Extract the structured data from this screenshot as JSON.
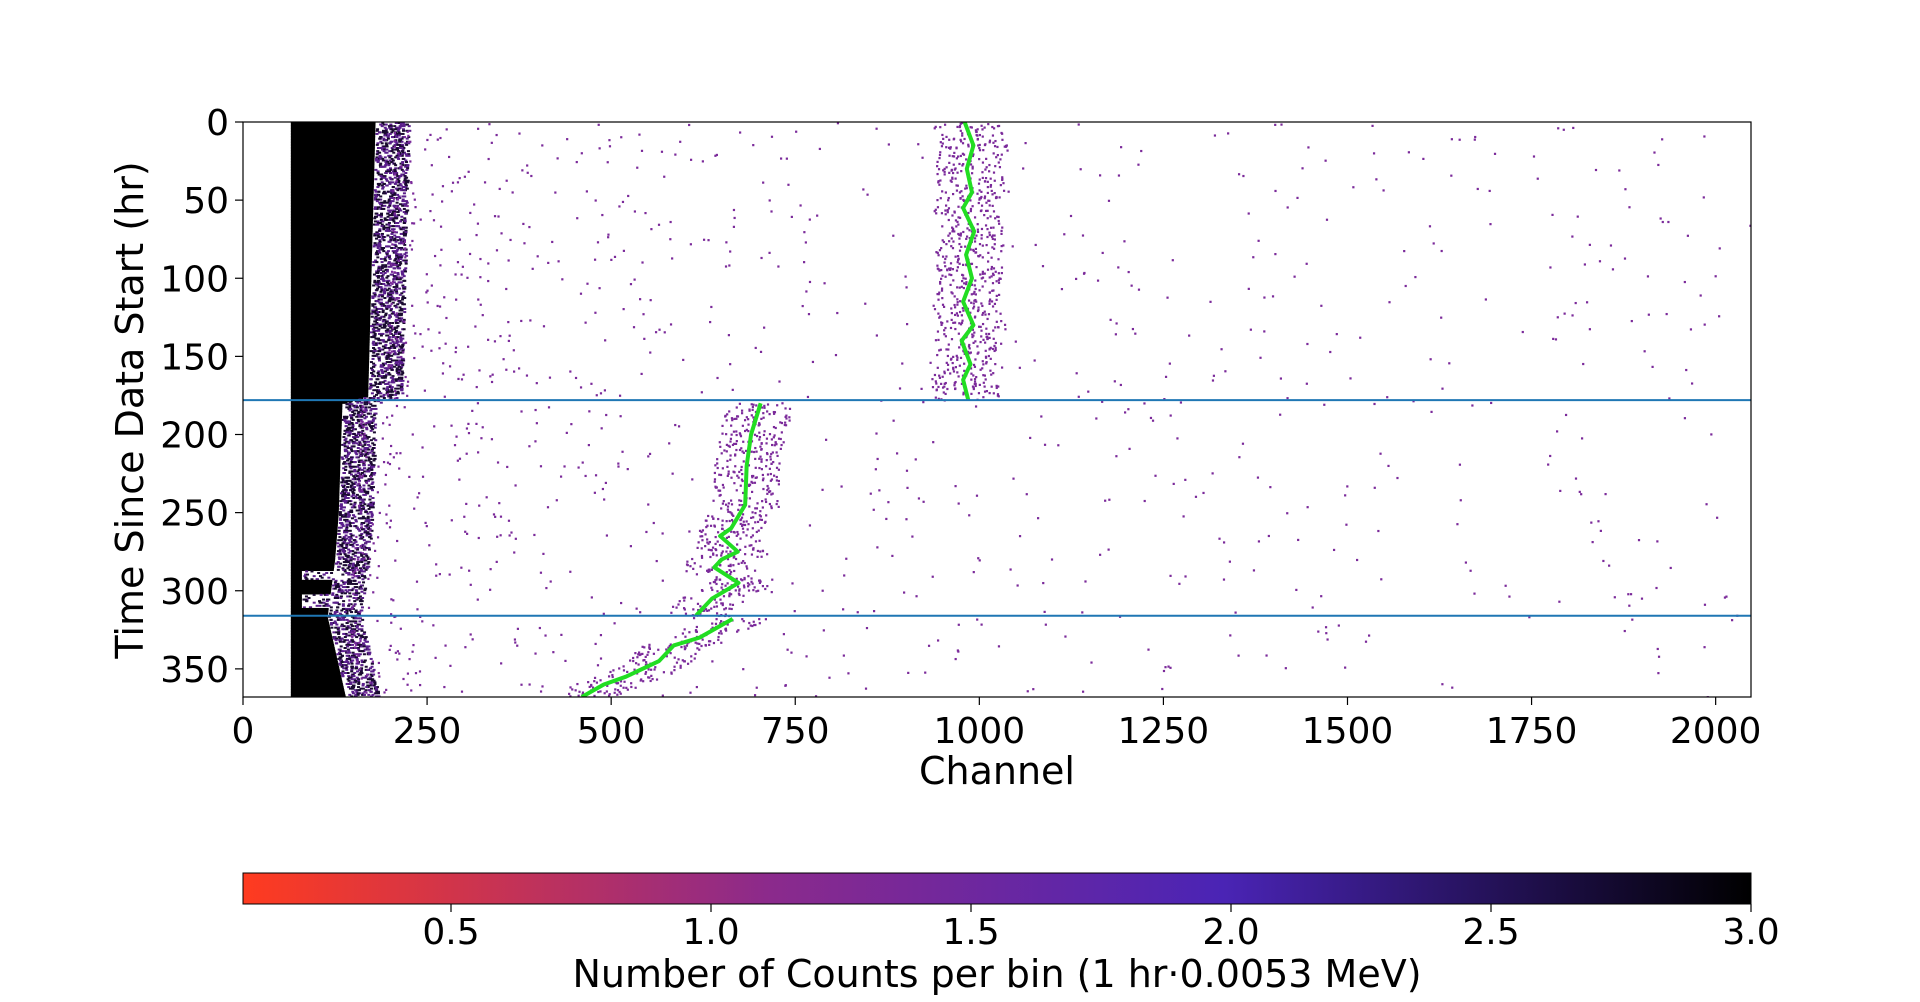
{
  "chart_data": {
    "type": "heatmap",
    "title": "",
    "xlabel": "Channel",
    "ylabel": "Time Since Data Start (hr)",
    "xlim": [
      0,
      2048
    ],
    "ylim": [
      368,
      0
    ],
    "x_ticks": [
      0,
      250,
      500,
      750,
      1000,
      1250,
      1500,
      1750,
      2000
    ],
    "y_ticks": [
      0,
      50,
      100,
      150,
      200,
      250,
      300,
      350
    ],
    "horizontal_lines_hr": [
      178,
      316
    ],
    "line_color": "#1f77b4",
    "colorbar": {
      "label": "Number of Counts per bin (1 hr·0.0053 MeV)",
      "range": [
        0.1,
        3.0
      ],
      "ticks": [
        0.5,
        1.0,
        1.5,
        2.0,
        2.5,
        3.0
      ],
      "colors": [
        "#ff3b1f",
        "#8b2a8c",
        "#4a24b5",
        "#000000"
      ]
    },
    "dense_region": {
      "channel_start": 65,
      "edge_channel_by_time": [
        {
          "t": 0,
          "ch": 205
        },
        {
          "t": 175,
          "ch": 195
        },
        {
          "t": 180,
          "ch": 160
        },
        {
          "t": 250,
          "ch": 155
        },
        {
          "t": 280,
          "ch": 150
        },
        {
          "t": 316,
          "ch": 140
        },
        {
          "t": 368,
          "ch": 165
        }
      ],
      "gaps_hr": [
        [
          287,
          292
        ],
        [
          302,
          310
        ]
      ]
    },
    "peak_tracks": [
      {
        "name": "peak-segment-1",
        "color": "#22dd22",
        "points": [
          [
            980,
            0
          ],
          [
            992,
            15
          ],
          [
            983,
            30
          ],
          [
            990,
            45
          ],
          [
            978,
            55
          ],
          [
            993,
            70
          ],
          [
            982,
            85
          ],
          [
            990,
            100
          ],
          [
            978,
            115
          ],
          [
            992,
            130
          ],
          [
            976,
            140
          ],
          [
            988,
            155
          ],
          [
            978,
            165
          ],
          [
            985,
            178
          ]
        ]
      },
      {
        "name": "peak-segment-2",
        "color": "#22dd22",
        "points": [
          [
            703,
            180
          ],
          [
            690,
            200
          ],
          [
            684,
            220
          ],
          [
            682,
            245
          ],
          [
            663,
            260
          ],
          [
            648,
            265
          ],
          [
            672,
            275
          ],
          [
            650,
            280
          ],
          [
            640,
            285
          ],
          [
            673,
            295
          ],
          [
            637,
            305
          ],
          [
            615,
            316
          ]
        ]
      },
      {
        "name": "peak-segment-3",
        "color": "#22dd22",
        "points": [
          [
            665,
            318
          ],
          [
            620,
            330
          ],
          [
            585,
            335
          ],
          [
            565,
            345
          ],
          [
            520,
            355
          ],
          [
            490,
            360
          ],
          [
            460,
            368
          ]
        ]
      }
    ]
  }
}
